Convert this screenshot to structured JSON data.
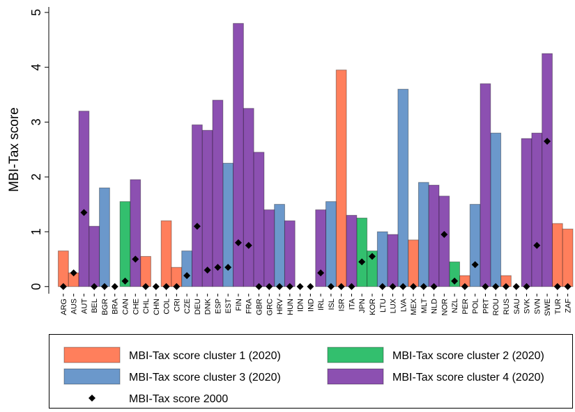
{
  "chart_data": {
    "type": "bar",
    "y_label": "MBI-Tax score",
    "categories": [
      "ARG",
      "AUS",
      "AUT",
      "BEL",
      "BGR",
      "BRA",
      "CAN",
      "CHE",
      "CHL",
      "CHN",
      "COL",
      "CRI",
      "CZE",
      "DEU",
      "DNK",
      "ESP",
      "EST",
      "FIN",
      "FRA",
      "GBR",
      "GRC",
      "HRV",
      "HUN",
      "IDN",
      "IND",
      "IRL",
      "ISL",
      "ISR",
      "ITA",
      "JPN",
      "KOR",
      "LTU",
      "LUX",
      "LVA",
      "MEX",
      "MLT",
      "NLD",
      "NOR",
      "NZL",
      "PER",
      "POL",
      "PRT",
      "ROU",
      "RUS",
      "SAU",
      "SVK",
      "SVN",
      "SWE",
      "TUR",
      "ZAF"
    ],
    "series": [
      {
        "name": "MBI-Tax score cluster 1 (2020)",
        "color": "#ff7f5c",
        "values": [
          0.65,
          0.25,
          null,
          null,
          null,
          null,
          null,
          null,
          0.55,
          null,
          1.2,
          0.35,
          null,
          null,
          null,
          null,
          null,
          null,
          null,
          null,
          null,
          null,
          null,
          null,
          null,
          null,
          null,
          3.95,
          null,
          null,
          null,
          null,
          null,
          null,
          0.85,
          null,
          null,
          null,
          null,
          0.2,
          null,
          null,
          null,
          0.2,
          null,
          null,
          null,
          null,
          1.15,
          1.05
        ]
      },
      {
        "name": "MBI-Tax score cluster 2 (2020)",
        "color": "#33bf6e",
        "values": [
          null,
          null,
          null,
          null,
          null,
          null,
          1.55,
          null,
          null,
          null,
          null,
          null,
          null,
          null,
          null,
          null,
          null,
          null,
          null,
          null,
          null,
          null,
          null,
          null,
          null,
          null,
          null,
          null,
          null,
          1.25,
          0.65,
          null,
          null,
          null,
          null,
          null,
          null,
          null,
          0.45,
          null,
          null,
          null,
          null,
          null,
          null,
          null,
          null,
          null,
          null,
          null
        ]
      },
      {
        "name": "MBI-Tax score cluster 3 (2020)",
        "color": "#6b98cb",
        "values": [
          null,
          null,
          null,
          null,
          1.8,
          null,
          null,
          null,
          null,
          null,
          null,
          null,
          0.65,
          null,
          null,
          null,
          2.25,
          null,
          null,
          null,
          null,
          1.5,
          null,
          null,
          null,
          null,
          1.55,
          null,
          null,
          null,
          null,
          1.0,
          null,
          3.6,
          null,
          1.9,
          null,
          null,
          null,
          null,
          1.5,
          null,
          2.8,
          null,
          null,
          null,
          null,
          null,
          null,
          null
        ]
      },
      {
        "name": "MBI-Tax score cluster 4 (2020)",
        "color": "#8c50b1",
        "values": [
          null,
          null,
          3.2,
          1.1,
          null,
          null,
          null,
          1.95,
          null,
          null,
          null,
          null,
          null,
          2.95,
          2.85,
          3.4,
          null,
          4.8,
          3.25,
          2.45,
          1.4,
          null,
          1.2,
          null,
          null,
          1.4,
          null,
          null,
          1.3,
          null,
          null,
          null,
          0.95,
          null,
          null,
          null,
          1.85,
          1.65,
          null,
          null,
          null,
          3.7,
          null,
          null,
          null,
          2.7,
          2.8,
          4.25,
          null,
          null
        ]
      },
      {
        "name": "MBI-Tax score 2000",
        "color": "#000000",
        "style": "diamond",
        "values": [
          0,
          0.25,
          1.35,
          0,
          0,
          0,
          0.1,
          0.5,
          0,
          0,
          0,
          0,
          0.2,
          1.1,
          0.3,
          0.35,
          0.35,
          0.8,
          0.75,
          0,
          0,
          0,
          0,
          0,
          0,
          0.25,
          0,
          0,
          0,
          0.45,
          0.55,
          0,
          0,
          0,
          0,
          0,
          0,
          0.95,
          0.1,
          0,
          0.4,
          0,
          0,
          0,
          0,
          0,
          0.75,
          2.65,
          0,
          0
        ]
      }
    ],
    "ylim": [
      -0.13,
      5.1
    ],
    "yticks": [
      0,
      1,
      2,
      3,
      4,
      5
    ],
    "grid": false
  }
}
